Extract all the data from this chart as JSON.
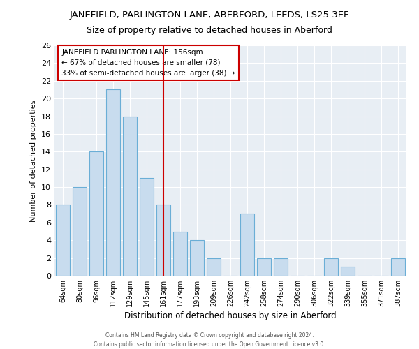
{
  "title": "JANEFIELD, PARLINGTON LANE, ABERFORD, LEEDS, LS25 3EF",
  "subtitle": "Size of property relative to detached houses in Aberford",
  "xlabel": "Distribution of detached houses by size in Aberford",
  "ylabel": "Number of detached properties",
  "categories": [
    "64sqm",
    "80sqm",
    "96sqm",
    "112sqm",
    "129sqm",
    "145sqm",
    "161sqm",
    "177sqm",
    "193sqm",
    "209sqm",
    "226sqm",
    "242sqm",
    "258sqm",
    "274sqm",
    "290sqm",
    "306sqm",
    "322sqm",
    "339sqm",
    "355sqm",
    "371sqm",
    "387sqm"
  ],
  "values": [
    8,
    10,
    14,
    21,
    18,
    11,
    8,
    5,
    4,
    2,
    0,
    7,
    2,
    2,
    0,
    0,
    2,
    1,
    0,
    0,
    2
  ],
  "bar_color": "#c8dcee",
  "bar_edge_color": "#6aaed6",
  "vline_color": "#cc0000",
  "annotation_title": "JANEFIELD PARLINGTON LANE: 156sqm",
  "annotation_line1": "← 67% of detached houses are smaller (78)",
  "annotation_line2": "33% of semi-detached houses are larger (38) →",
  "annotation_box_color": "#ffffff",
  "annotation_box_edge": "#cc0000",
  "ylim": [
    0,
    26
  ],
  "yticks": [
    0,
    2,
    4,
    6,
    8,
    10,
    12,
    14,
    16,
    18,
    20,
    22,
    24,
    26
  ],
  "footer1": "Contains HM Land Registry data © Crown copyright and database right 2024.",
  "footer2": "Contains public sector information licensed under the Open Government Licence v3.0.",
  "bg_color": "#ffffff",
  "plot_bg_color": "#e8eef4",
  "title_fontsize": 9.5,
  "subtitle_fontsize": 9
}
